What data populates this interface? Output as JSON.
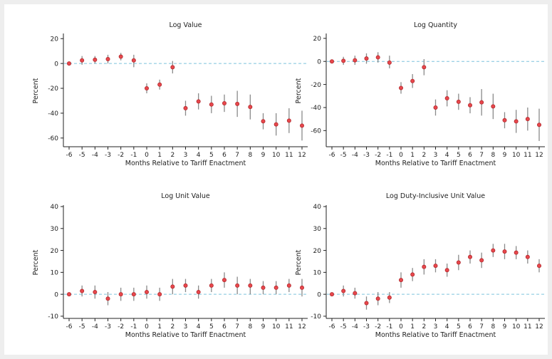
{
  "chart_data": [
    {
      "type": "scatter",
      "title": "Log Value",
      "xlabel": "Months Relative to Tariff Enactment",
      "ylabel": "Percent",
      "x": [
        -6,
        -5,
        -4,
        -3,
        -2,
        -1,
        0,
        1,
        2,
        3,
        4,
        5,
        6,
        7,
        8,
        9,
        10,
        11,
        12
      ],
      "x_tick_labels": [
        "-6",
        "-5",
        "-4",
        "-3",
        "-2",
        "-1",
        "0",
        "1",
        "2",
        "3",
        "4",
        "5",
        "6",
        "7",
        "8",
        "9",
        "10",
        "11",
        "12"
      ],
      "y": [
        0,
        2.5,
        3,
        3.5,
        5.5,
        2.5,
        -20,
        -17,
        -3,
        -36,
        -30.5,
        -33,
        -32,
        -32.5,
        -35,
        -46.5,
        -49,
        -46,
        -50
      ],
      "ci_low": [
        0,
        -1,
        0,
        0,
        2.5,
        -3,
        -24,
        -21,
        -8,
        -42,
        -37,
        -40,
        -39,
        -43,
        -45,
        -53,
        -58,
        -56,
        -62
      ],
      "ci_high": [
        0,
        6,
        6,
        7,
        8.5,
        7,
        -16,
        -13,
        2,
        -30,
        -24,
        -26,
        -25,
        -22,
        -25,
        -40,
        -40,
        -36,
        -38
      ],
      "ylim": [
        -67,
        23
      ],
      "y_ticks": [
        20,
        0,
        -20,
        -40,
        -60
      ],
      "y_tick_labels": [
        "20",
        "0",
        "-20",
        "-40",
        "-60"
      ],
      "reference_line": 0,
      "marker_color": "#e8474c",
      "error_bar_color": "#8a8a8a",
      "reference_line_color": "#7fc3dd",
      "grid": false
    },
    {
      "type": "scatter",
      "title": "Log Quantity",
      "xlabel": "Months Relative to Tariff Enactment",
      "ylabel": "Percent",
      "x": [
        -6,
        -5,
        -4,
        -3,
        -2,
        -1,
        0,
        1,
        2,
        3,
        4,
        5,
        6,
        7,
        8,
        9,
        10,
        11,
        12
      ],
      "x_tick_labels": [
        "-6",
        "-5",
        "-4",
        "-3",
        "-2",
        "-1",
        "0",
        "1",
        "2",
        "3",
        "4",
        "5",
        "6",
        "7",
        "8",
        "9",
        "10",
        "11",
        "12"
      ],
      "y": [
        0,
        0.5,
        1,
        2.5,
        3.5,
        -1,
        -23,
        -17,
        -5,
        -40,
        -32,
        -35,
        -38,
        -35.5,
        -39,
        -51,
        -52,
        -50,
        -55
      ],
      "ci_low": [
        0,
        -3,
        -3,
        -2,
        -1,
        -6,
        -28,
        -23,
        -12,
        -47,
        -39,
        -42,
        -45,
        -47,
        -50,
        -58,
        -62,
        -60,
        -69
      ],
      "ci_high": [
        0,
        4,
        5,
        7,
        8,
        5,
        -18,
        -11,
        2,
        -33,
        -25,
        -28,
        -31,
        -24,
        -28,
        -44,
        -42,
        -40,
        -41
      ],
      "ylim": [
        -74,
        23
      ],
      "y_ticks": [
        20,
        0,
        -20,
        -40,
        -60
      ],
      "y_tick_labels": [
        "20",
        "0",
        "-20",
        "-40",
        "-60"
      ],
      "reference_line": 0,
      "marker_color": "#e8474c",
      "error_bar_color": "#8a8a8a",
      "reference_line_color": "#7fc3dd",
      "grid": false
    },
    {
      "type": "scatter",
      "title": "Log Unit Value",
      "xlabel": "Months Relative to Tariff Enactment",
      "ylabel": "Percent",
      "x": [
        -6,
        -5,
        -4,
        -3,
        -2,
        -1,
        0,
        1,
        2,
        3,
        4,
        5,
        6,
        7,
        8,
        9,
        10,
        11,
        12
      ],
      "x_tick_labels": [
        "-6",
        "-5",
        "-4",
        "-3",
        "-2",
        "-1",
        "0",
        "1",
        "2",
        "3",
        "4",
        "5",
        "6",
        "7",
        "8",
        "9",
        "10",
        "11",
        "12"
      ],
      "y": [
        0,
        1.5,
        1,
        -2,
        0,
        0,
        1,
        0,
        3.5,
        4,
        1,
        4,
        6.5,
        4,
        4,
        3,
        3,
        4,
        3
      ],
      "ci_low": [
        0,
        -1,
        -2,
        -5,
        -3,
        -3,
        -2,
        -3,
        0,
        1,
        -2,
        1,
        3,
        0,
        0,
        0,
        0,
        1,
        -1
      ],
      "ci_high": [
        0,
        4,
        4,
        1,
        3,
        3,
        4,
        3,
        7,
        7,
        4,
        7,
        10,
        8,
        7,
        6,
        6,
        7,
        7
      ],
      "ylim": [
        -11,
        40
      ],
      "y_ticks": [
        40,
        30,
        20,
        10,
        0,
        -10
      ],
      "y_tick_labels": [
        "40",
        "30",
        "20",
        "10",
        "0",
        "-10"
      ],
      "reference_line": 0,
      "marker_color": "#e8474c",
      "error_bar_color": "#8a8a8a",
      "reference_line_color": "#7fc3dd",
      "grid": false
    },
    {
      "type": "scatter",
      "title": "Log Duty-Inclusive Unit Value",
      "xlabel": "Months Relative to Tariff Enactment",
      "ylabel": "Percent",
      "x": [
        -6,
        -5,
        -4,
        -3,
        -2,
        -1,
        0,
        1,
        2,
        3,
        4,
        5,
        6,
        7,
        8,
        9,
        10,
        11,
        12
      ],
      "x_tick_labels": [
        "-6",
        "-5",
        "-4",
        "-3",
        "-2",
        "-1",
        "0",
        "1",
        "2",
        "3",
        "4",
        "5",
        "6",
        "7",
        "8",
        "9",
        "10",
        "11",
        "12"
      ],
      "y": [
        0,
        1.5,
        0.5,
        -4,
        -2,
        -1.5,
        6.5,
        9,
        12.5,
        13,
        11,
        14.5,
        17,
        15.5,
        20,
        19.5,
        19,
        17,
        13
      ],
      "ci_low": [
        0,
        -1,
        -2,
        -7,
        -5,
        -4,
        3,
        6,
        9,
        10,
        8,
        11,
        14,
        12,
        17,
        16,
        16,
        14,
        10
      ],
      "ci_high": [
        0,
        4,
        3,
        -1,
        1,
        1,
        10,
        12,
        16,
        16,
        14,
        18,
        20,
        19,
        23,
        23,
        22,
        20,
        16
      ],
      "ylim": [
        -11,
        40
      ],
      "y_ticks": [
        40,
        30,
        20,
        10,
        0,
        -10
      ],
      "y_tick_labels": [
        "40",
        "30",
        "20",
        "10",
        "0",
        "-10"
      ],
      "reference_line": 0,
      "marker_color": "#e8474c",
      "error_bar_color": "#8a8a8a",
      "reference_line_color": "#7fc3dd",
      "grid": false
    }
  ]
}
